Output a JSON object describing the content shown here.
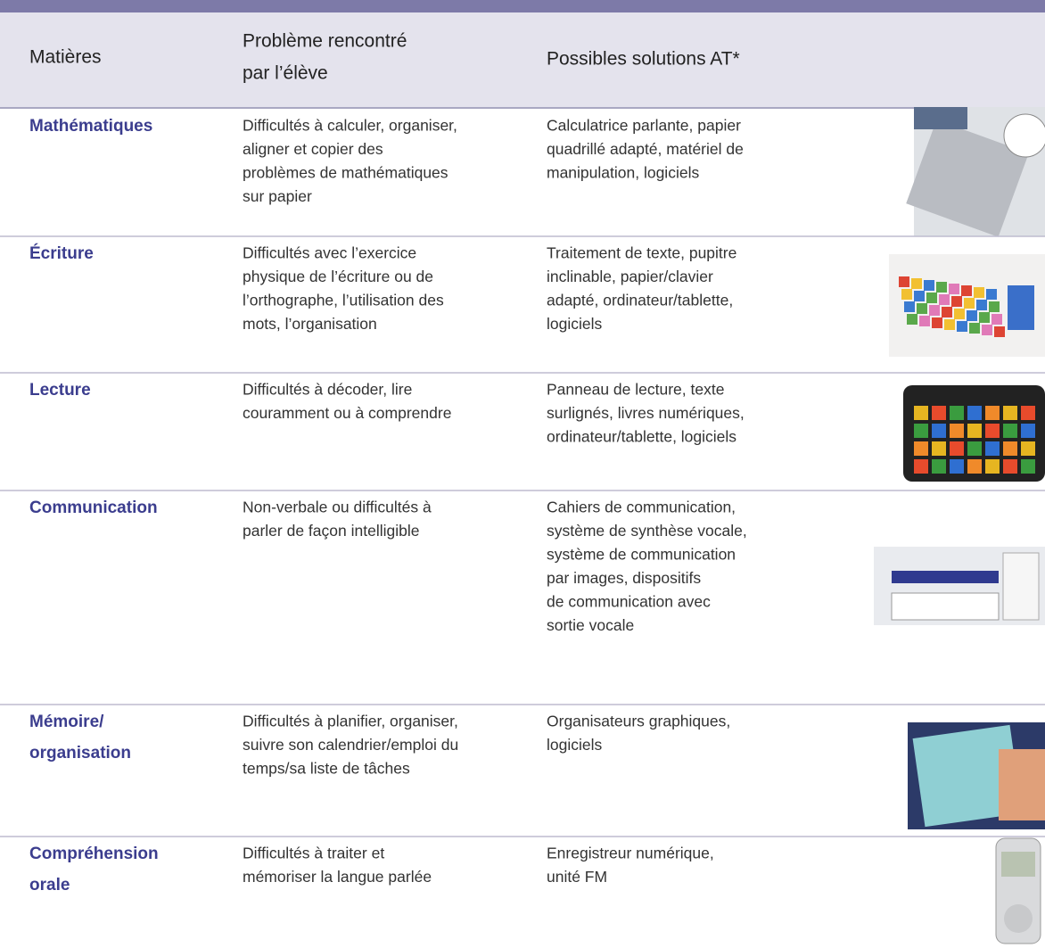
{
  "header": {
    "columns": [
      [
        "Matières"
      ],
      [
        "Problème rencontré",
        "par l’élève"
      ],
      [
        "Possibles solutions AT*"
      ]
    ]
  },
  "table": {
    "rows": [
      {
        "subject": [
          "Mathématiques"
        ],
        "problem": [
          "Difficultés à calculer, organiser,",
          "aligner et copier des",
          "problèmes de mathématiques",
          "sur papier"
        ],
        "solutions": [
          "Calculatrice parlante, papier",
          "quadrillé adapté, matériel de",
          "manipulation, logiciels"
        ]
      },
      {
        "subject": [
          "Écriture"
        ],
        "problem": [
          "Difficultés avec l’exercice",
          "physique de l’écriture ou de",
          "l’orthographe, l’utilisation des",
          "mots, l’organisation"
        ],
        "solutions": [
          "Traitement de texte, pupitre",
          "inclinable, papier/clavier",
          "adapté, ordinateur/tablette,",
          "logiciels"
        ]
      },
      {
        "subject": [
          "Lecture"
        ],
        "problem": [
          "Difficultés à décoder, lire",
          "couramment ou à comprendre"
        ],
        "solutions": [
          "Panneau de lecture, texte",
          "surlignés, livres numériques,",
          "ordinateur/tablette, logiciels"
        ]
      },
      {
        "subject": [
          "Communication"
        ],
        "problem": [
          "Non-verbale ou difficultés à",
          "parler de façon intelligible"
        ],
        "solutions": [
          "Cahiers de communication,",
          "système de synthèse vocale,",
          "système de communication",
          "par images, dispositifs",
          "de communication avec",
          "sortie vocale"
        ]
      },
      {
        "subject": [
          "Mémoire/",
          "organisation"
        ],
        "problem": [
          "Difficultés à planifier, organiser,",
          "suivre son calendrier/emploi du",
          "temps/sa liste de tâches"
        ],
        "solutions": [
          "Organisateurs graphiques,",
          "logiciels"
        ]
      },
      {
        "subject": [
          "Compréhension",
          "orale"
        ],
        "problem": [
          "Difficultés à traiter et",
          "mémoriser la langue parlée"
        ],
        "solutions": [
          "Enregistreur numérique,",
          "unité FM"
        ]
      }
    ]
  }
}
